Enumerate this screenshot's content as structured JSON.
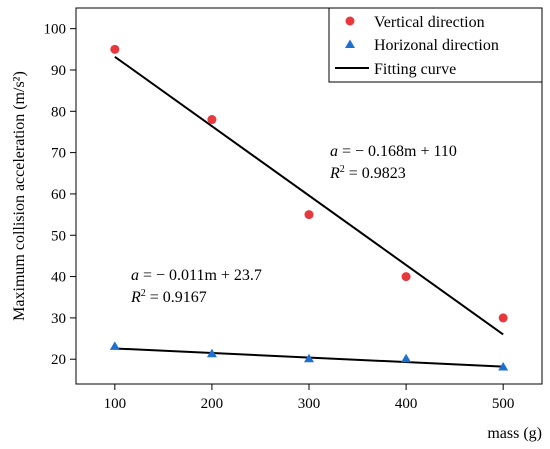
{
  "chart_data": {
    "type": "scatter",
    "xlabel": "mass (g)",
    "ylabel": "Maximum collision acceleration (m/s²)",
    "xlim": [
      60,
      540
    ],
    "ylim": [
      14,
      105
    ],
    "xticks": [
      100,
      200,
      300,
      400,
      500
    ],
    "yticks": [
      20,
      30,
      40,
      50,
      60,
      70,
      80,
      90,
      100
    ],
    "legend": {
      "placement": "top-right",
      "entries": [
        "Vertical direction",
        "Horizonal direction",
        "Fitting curve"
      ]
    },
    "series": [
      {
        "name": "Vertical direction",
        "marker": "circle",
        "color": "#e8383d",
        "x": [
          100,
          200,
          300,
          400,
          500
        ],
        "y": [
          95,
          78,
          55,
          40,
          30
        ]
      },
      {
        "name": "Horizonal direction",
        "marker": "triangle",
        "color": "#1f6fd1",
        "x": [
          100,
          200,
          300,
          400,
          500
        ],
        "y": [
          23,
          21.2,
          20,
          20,
          18
        ]
      }
    ],
    "fits": [
      {
        "name": "Fitting curve",
        "for": "Vertical direction",
        "color": "#000000",
        "x": [
          100,
          500
        ],
        "y": [
          93.2,
          26.0
        ],
        "equation": "= − 0.168m + 110",
        "r2": "= 0.9823"
      },
      {
        "name": "Fitting curve",
        "for": "Horizonal direction",
        "color": "#000000",
        "x": [
          100,
          500
        ],
        "y": [
          22.6,
          18.2
        ],
        "equation": "= − 0.011m + 23.7",
        "r2": "= 0.9167"
      }
    ]
  }
}
